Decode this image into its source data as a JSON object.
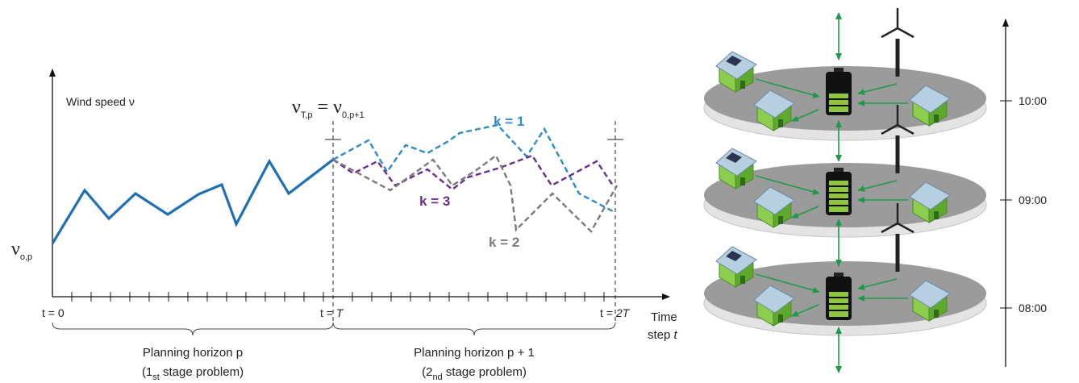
{
  "plot": {
    "y_axis_label": "Wind speed ν",
    "start_value": {
      "symbol": "ν",
      "subscript": "o,p"
    },
    "boundary_value": {
      "left_symbol": "ν",
      "left_subscript": "T,p",
      "equals": "=",
      "right_symbol": "ν",
      "right_subscript": "0,p+1"
    },
    "scenarios": [
      {
        "label": "k = 1"
      },
      {
        "label": "k = 3"
      },
      {
        "label": "k = 2"
      }
    ],
    "x_ticks": [
      {
        "text": "t = 0"
      },
      {
        "text": "t = ",
        "italic": "T"
      },
      {
        "text": "t = ",
        "italic": "2T"
      }
    ],
    "x_axis_label": {
      "line1": "Time",
      "line2": "step ",
      "var": "t"
    },
    "horizons": [
      {
        "title": "Planning horizon p",
        "note_open": "(1",
        "note_sub": "st",
        "note_close": " stage problem)"
      },
      {
        "title": "Planning horizon p + 1",
        "note_open": "(2",
        "note_sub": "nd",
        "note_close": " stage problem)"
      }
    ]
  },
  "timeline": {
    "times": [
      "10:00",
      "09:00",
      "08:00"
    ]
  }
}
